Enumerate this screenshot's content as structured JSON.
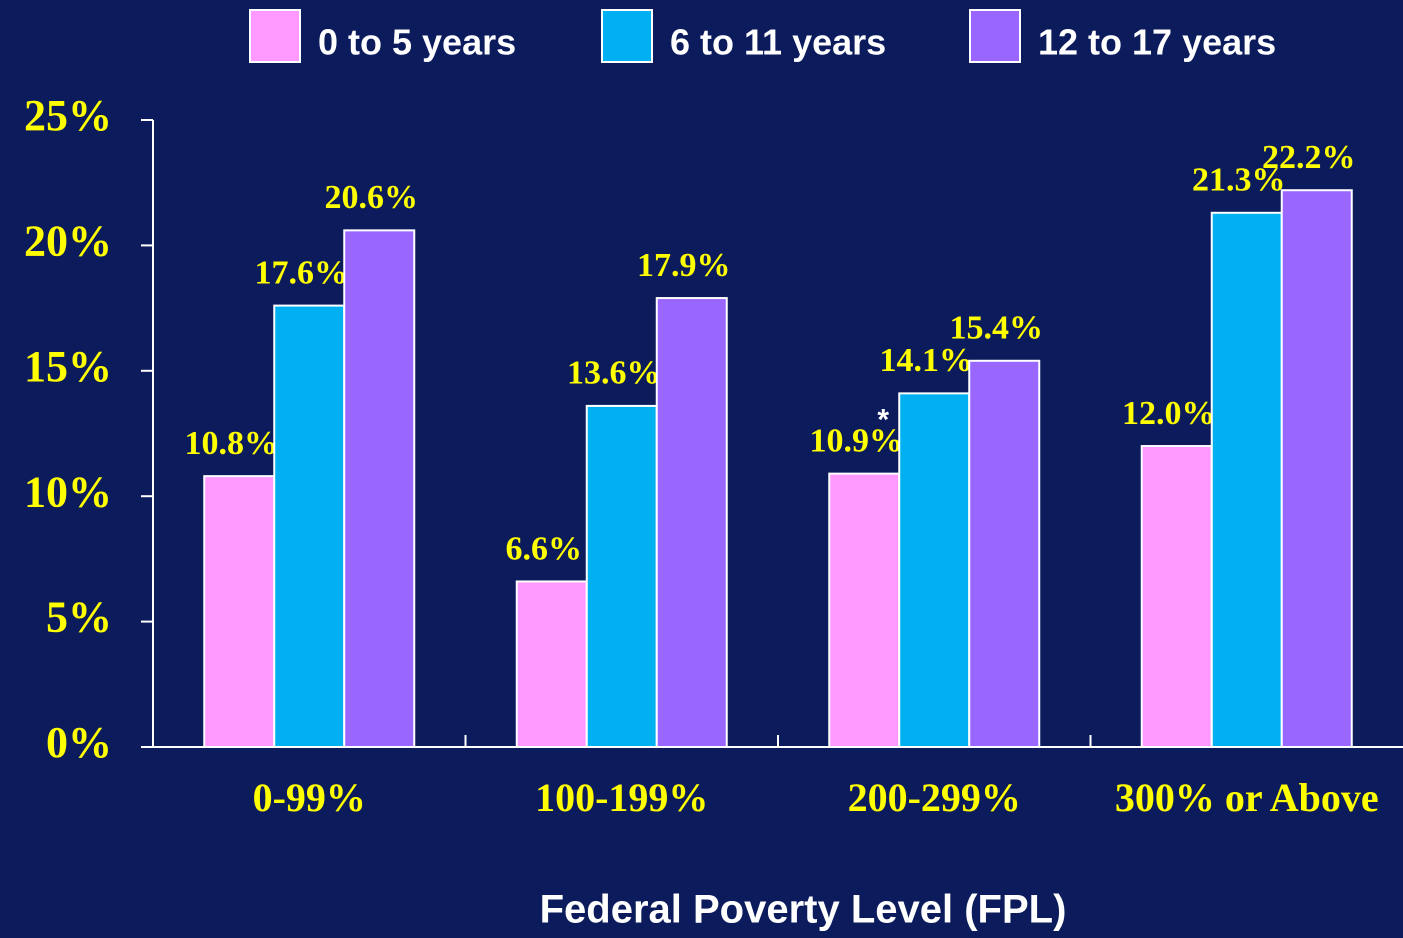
{
  "chart_data": {
    "type": "bar",
    "x_label": "Federal Poverty Level (FPL)",
    "categories": [
      "0-99%",
      "100-199%",
      "200-299%",
      "300% or Above"
    ],
    "series": [
      {
        "name": "0 to 5 years",
        "color": "#ff99ff",
        "values": [
          10.8,
          6.6,
          10.9,
          12.0
        ],
        "value_labels": [
          "10.8%",
          "6.6%",
          "10.9%",
          "12.0%"
        ]
      },
      {
        "name": "6 to 11 years",
        "color": "#00b0f0",
        "values": [
          17.6,
          13.6,
          14.1,
          21.3
        ],
        "value_labels": [
          "17.6%",
          "13.6%",
          "14.1%",
          "21.3%"
        ]
      },
      {
        "name": "12 to 17 years",
        "color": "#9966ff",
        "values": [
          20.6,
          17.9,
          15.4,
          22.2
        ],
        "value_labels": [
          "20.6%",
          "17.9%",
          "15.4%",
          "22.2%"
        ]
      }
    ],
    "annotation": "*",
    "ylim": [
      0,
      25
    ],
    "yticks": [
      {
        "value": 0,
        "label": "0%"
      },
      {
        "value": 5,
        "label": "5%"
      },
      {
        "value": 10,
        "label": "10%"
      },
      {
        "value": 15,
        "label": "15%"
      },
      {
        "value": 20,
        "label": "20%"
      },
      {
        "value": 25,
        "label": "25%"
      }
    ],
    "legend": "top"
  }
}
